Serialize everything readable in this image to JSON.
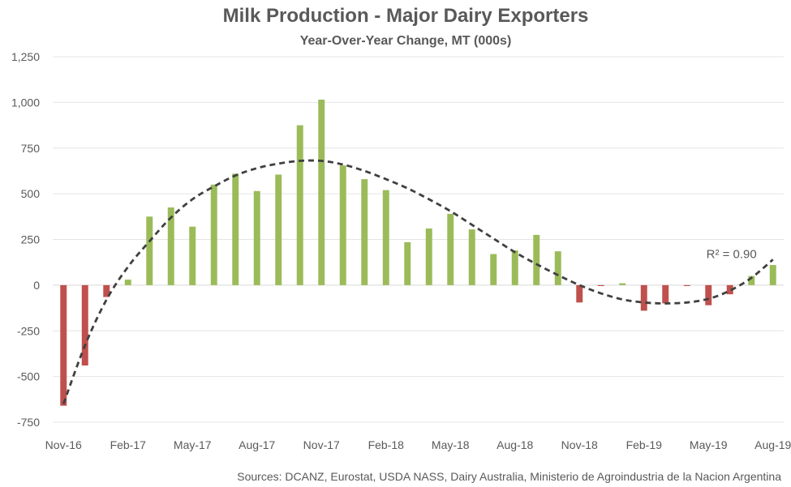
{
  "chart_data": {
    "type": "bar",
    "title": "Milk Production - Major Dairy Exporters",
    "subtitle": "Year-Over-Year Change, MT (000s)",
    "source": "Sources: DCANZ, Eurostat, USDA NASS, Dairy Australia, Ministerio de Agroindustria de la Nacion Argentina",
    "ylim": [
      -750,
      1250
    ],
    "yticks": [
      -750,
      -500,
      -250,
      0,
      250,
      500,
      750,
      1000,
      1250
    ],
    "ytick_labels": [
      "-750",
      "-500",
      "-250",
      "0",
      "250",
      "500",
      "750",
      "1,000",
      "1,250"
    ],
    "categories": [
      "Nov-16",
      "Dec-16",
      "Jan-17",
      "Feb-17",
      "Mar-17",
      "Apr-17",
      "May-17",
      "Jun-17",
      "Jul-17",
      "Aug-17",
      "Sep-17",
      "Oct-17",
      "Nov-17",
      "Dec-17",
      "Jan-18",
      "Feb-18",
      "Mar-18",
      "Apr-18",
      "May-18",
      "Jun-18",
      "Jul-18",
      "Aug-18",
      "Sep-18",
      "Oct-18",
      "Nov-18",
      "Dec-18",
      "Jan-19",
      "Feb-19",
      "Mar-19",
      "Apr-19",
      "May-19",
      "Jun-19",
      "Jul-19",
      "Aug-19"
    ],
    "xtick_labels": [
      "Nov-16",
      "Feb-17",
      "May-17",
      "Aug-17",
      "Nov-17",
      "Feb-18",
      "May-18",
      "Aug-18",
      "Nov-18",
      "Feb-19",
      "May-19",
      "Aug-19"
    ],
    "values": [
      -660,
      -440,
      -65,
      30,
      375,
      425,
      320,
      550,
      610,
      515,
      605,
      875,
      1015,
      655,
      580,
      520,
      235,
      310,
      390,
      305,
      170,
      190,
      275,
      185,
      -95,
      -5,
      10,
      -140,
      -100,
      -5,
      -110,
      -50,
      50,
      110
    ],
    "positive_color": "#9BBB59",
    "negative_color": "#C0504D",
    "trendline": {
      "type": "polynomial",
      "r_squared_label": "R² = 0.90",
      "color": "#404040",
      "values": [
        -650,
        -330,
        -80,
        100,
        240,
        370,
        470,
        540,
        600,
        640,
        665,
        680,
        680,
        660,
        625,
        580,
        530,
        470,
        405,
        330,
        255,
        180,
        115,
        55,
        0,
        -45,
        -78,
        -95,
        -100,
        -95,
        -75,
        -30,
        40,
        140
      ]
    }
  }
}
